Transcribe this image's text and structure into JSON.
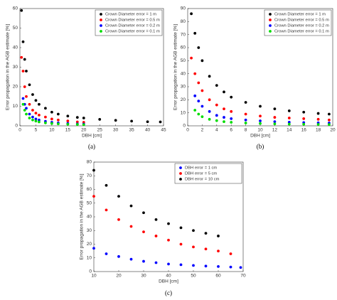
{
  "chart_data": [
    {
      "type": "scatter",
      "caption": "(a)",
      "xlabel": "DBH [cm]",
      "ylabel": "Error propagation in the AGB estimate [%]",
      "xlim": [
        0,
        45
      ],
      "ylim": [
        0,
        60
      ],
      "xticks": [
        0,
        5,
        10,
        15,
        20,
        25,
        30,
        35,
        40,
        45
      ],
      "yticks": [
        0,
        10,
        20,
        30,
        40,
        50,
        60
      ],
      "legend": "upper right",
      "series": [
        {
          "name": "Crown Diameter error = 1 m",
          "color": "#000000",
          "x": [
            0.5,
            1,
            1.5,
            2,
            3,
            4,
            5,
            6,
            8,
            10,
            12,
            15,
            18,
            20,
            25,
            30,
            35,
            40,
            44
          ],
          "values": [
            59,
            43,
            34,
            28,
            21,
            16,
            13,
            11,
            9,
            7,
            6,
            5,
            4.3,
            4,
            3.3,
            2.8,
            2.4,
            2.1,
            2
          ]
        },
        {
          "name": "Crown Diameter error = 0.5 m",
          "color": "#ff0000",
          "x": [
            0.5,
            1,
            1.5,
            2,
            3,
            4,
            5,
            6,
            8,
            10,
            12,
            15,
            18,
            20
          ],
          "values": [
            35,
            28,
            20,
            15,
            11,
            8,
            6.5,
            5.5,
            4.5,
            3.5,
            3,
            2.5,
            2,
            1.8
          ]
        },
        {
          "name": "Crown Diameter error = 0.2 m",
          "color": "#0000ff",
          "x": [
            1,
            1.5,
            2,
            3,
            4,
            5,
            6,
            8,
            10,
            12,
            15,
            18,
            20
          ],
          "values": [
            14,
            11,
            9,
            6,
            4.5,
            3.5,
            3,
            2.3,
            1.8,
            1.5,
            1.2,
            1,
            0.9
          ]
        },
        {
          "name": "Crown Diameter error = 0.1 m",
          "color": "#00dd00",
          "x": [
            1,
            1.5,
            2,
            3,
            4,
            5,
            6,
            8,
            10,
            12,
            15,
            18,
            20
          ],
          "values": [
            11,
            8,
            6,
            4,
            3,
            2.4,
            2,
            1.5,
            1.2,
            1,
            0.8,
            0.7,
            0.6
          ]
        }
      ]
    },
    {
      "type": "scatter",
      "caption": "(b)",
      "xlabel": "DBH [cm]",
      "ylabel": "Error propagation in the AGB estimate [%]",
      "xlim": [
        0,
        20
      ],
      "ylim": [
        0,
        90
      ],
      "xticks": [
        0,
        2,
        4,
        6,
        8,
        10,
        12,
        14,
        16,
        18,
        20
      ],
      "yticks": [
        0,
        10,
        20,
        30,
        40,
        50,
        60,
        70,
        80,
        90
      ],
      "legend": "upper right",
      "series": [
        {
          "name": "Crown Diameter error = 1 m",
          "color": "#000000",
          "x": [
            0.5,
            1,
            1.5,
            2,
            3,
            4,
            5,
            6,
            8,
            10,
            12,
            14,
            16,
            18,
            19.5
          ],
          "values": [
            86,
            71,
            60,
            50,
            38,
            31,
            26,
            22,
            18,
            15,
            13,
            11.5,
            10.5,
            9.5,
            9
          ]
        },
        {
          "name": "Crown Diameter error = 0.5 m",
          "color": "#ff0000",
          "x": [
            0.5,
            1,
            1.5,
            2,
            3,
            4,
            5,
            6,
            8,
            10,
            12,
            14,
            16,
            18,
            19.5
          ],
          "values": [
            52,
            40,
            33,
            27,
            20,
            16,
            13,
            11,
            9,
            7.5,
            6.5,
            6,
            5.5,
            5,
            4.5
          ]
        },
        {
          "name": "Crown Diameter error = 0.2 m",
          "color": "#0000ff",
          "x": [
            1,
            1.5,
            2,
            3,
            4,
            5,
            6,
            8,
            10,
            12,
            14,
            16,
            18,
            19.5
          ],
          "values": [
            23,
            19,
            15,
            11,
            8,
            6.5,
            5.5,
            4.5,
            3.8,
            3.2,
            2.8,
            2.5,
            2.3,
            2.2
          ]
        },
        {
          "name": "Crown Diameter error = 0.1 m",
          "color": "#00dd00",
          "x": [
            1,
            1.5,
            2,
            3,
            4,
            5,
            6,
            8,
            10,
            12,
            14,
            16,
            18,
            19.5
          ],
          "values": [
            12,
            9,
            7,
            5,
            4,
            3.2,
            2.7,
            2.2,
            1.8,
            1.5,
            1.3,
            1.2,
            1.1,
            1
          ]
        }
      ]
    },
    {
      "type": "scatter",
      "caption": "(c)",
      "xlabel": "DBH [cm]",
      "ylabel": "Error propagation in the AGB estimate [%]",
      "xlim": [
        10,
        70
      ],
      "ylim": [
        0,
        80
      ],
      "xticks": [
        10,
        20,
        30,
        40,
        50,
        60,
        70
      ],
      "yticks": [
        0,
        10,
        20,
        30,
        40,
        50,
        60,
        70,
        80
      ],
      "legend": "upper right",
      "series": [
        {
          "name": "DBH error = 1 cm",
          "color": "#0000ff",
          "x": [
            10,
            15,
            20,
            25,
            30,
            35,
            40,
            45,
            50,
            55,
            60,
            65,
            69
          ],
          "values": [
            17,
            13,
            11,
            9,
            7.5,
            6.5,
            5.5,
            5,
            4.5,
            4,
            3.7,
            3.3,
            3
          ]
        },
        {
          "name": "DBH error = 5 cm",
          "color": "#ff0000",
          "x": [
            10,
            15,
            20,
            25,
            30,
            35,
            40,
            45,
            50,
            55,
            60,
            65
          ],
          "values": [
            55,
            45,
            38,
            33,
            29,
            26,
            23,
            20,
            18,
            16.5,
            15,
            13
          ]
        },
        {
          "name": "DBH error = 10 cm",
          "color": "#000000",
          "x": [
            10,
            15,
            20,
            25,
            30,
            35,
            40,
            45,
            50,
            55,
            60
          ],
          "values": [
            74,
            63,
            55,
            48,
            43,
            38,
            35,
            32,
            30,
            28,
            26
          ]
        }
      ]
    }
  ]
}
